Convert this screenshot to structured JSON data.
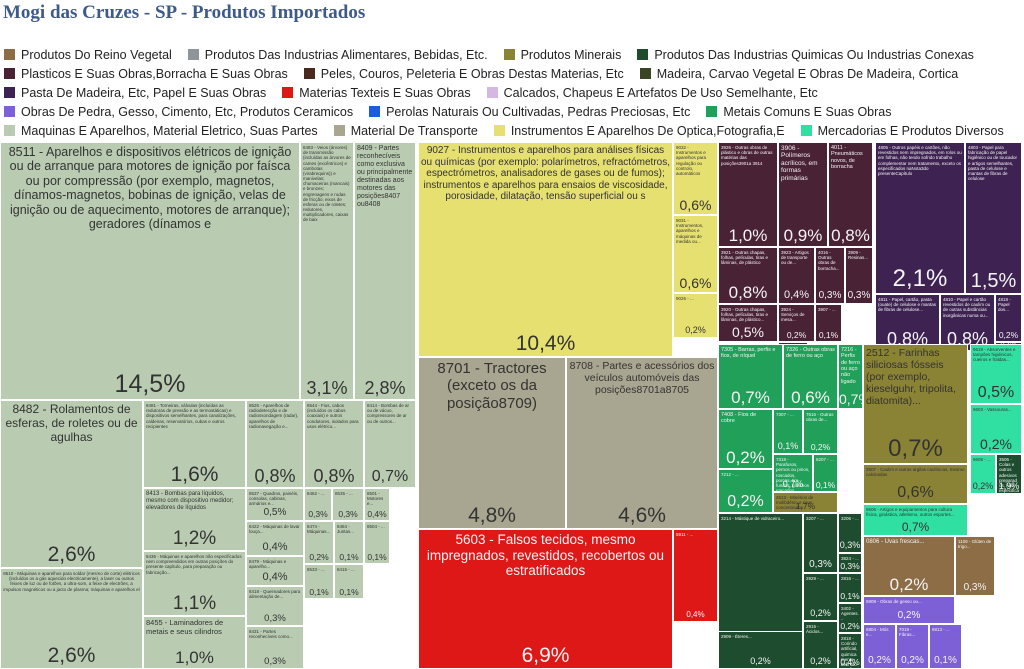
{
  "title": "Mogi das Cruzes - SP - Produtos Importados",
  "chart_data": {
    "type": "treemap",
    "title": "Mogi das Cruzes - SP - Produtos Importados",
    "legend_position": "top",
    "legend": [
      {
        "name": "Produtos Do Reino Vegetal",
        "color": "#8c6d46"
      },
      {
        "name": "Produtos Das Industrias Alimentares, Bebidas, Etc.",
        "color": "#8f9599"
      },
      {
        "name": "Produtos Minerais",
        "color": "#8a8235"
      },
      {
        "name": "Produtos Das Industrias Quimicas Ou Industrias Conexas",
        "color": "#1d4d2e"
      },
      {
        "name": "Plasticos E Suas Obras,Borracha E Suas Obras",
        "color": "#4a2236"
      },
      {
        "name": "Peles, Couros, Peleteria E Obras Destas Materias, Etc",
        "color": "#4a2a20"
      },
      {
        "name": "Madeira, Carvao Vegetal E Obras De Madeira, Cortica",
        "color": "#3a4524"
      },
      {
        "name": "Pasta De Madeira, Etc, Papel E Suas Obras",
        "color": "#3e2352"
      },
      {
        "name": "Materias Texteis E Suas Obras",
        "color": "#de1717"
      },
      {
        "name": "Calcados, Chapeus E Artefatos De Uso Semelhante, Etc",
        "color": "#d5b8e2"
      },
      {
        "name": "Obras De Pedra, Gesso, Cimento, Etc, Produtos Ceramicos",
        "color": "#7d5fd6"
      },
      {
        "name": "Perolas Naturais Ou Cultivadas, Pedras Preciosas, Etc",
        "color": "#1a5ee0"
      },
      {
        "name": "Metais Comuns E Suas Obras",
        "color": "#21a05a"
      },
      {
        "name": "Maquinas E Aparelhos, Material Eletrico, Suas Partes",
        "color": "#b9ccb2"
      },
      {
        "name": "Material De Transporte",
        "color": "#a8a690"
      },
      {
        "name": "Instrumentos E Aparelhos De Optica,Fotografia,E",
        "color": "#e6e070"
      },
      {
        "name": "Mercadorias E Produtos Diversos",
        "color": "#2fe0a2"
      }
    ],
    "tiles": [
      {
        "label": "8511 - Aparelhos e dispositivos elétricos de ignição ou de arranque para motores de ignição por faísca ou por compressão (por exemplo, magnetos, dínamos-magnetos, bobinas de ignição, velas de ignição ou de aquecimento, motores de arranque); geradores (dínamos e",
        "value": "14,5%",
        "group": 13
      },
      {
        "label": "8483 - Veios (árvores) de transmissão (incluídas as árvores de cames (excêntricos) e cambotas (virabrequins)) e manivelas; chumaceiras (mancais) e bronzes; engrenagens e rodas de fricção; eixos de esferas ou de roletes; redutores, multiplicadores, caixas de baix",
        "value": "3,1%",
        "group": 13
      },
      {
        "label": "8409 - Partes reconhecíveis como exclusiva ou principalmente destinadas aos motores das posições8407 ou8408",
        "value": "2,8%",
        "group": 13
      },
      {
        "label": "8482 - Rolamentos de esferas, de roletes ou de agulhas",
        "value": "2,6%",
        "group": 13
      },
      {
        "label": "8481 - Torneiras, válvulas (incluídas as redutoras de pressão e as termostáticas) e dispositivos semelhantes, para canalizações, caldeiras, reservatórios, cubas e outros recipientes",
        "value": "1,6%",
        "group": 13
      },
      {
        "label": "8526 - Aparelhos de radiodetecção e de radiossondagem (radar), aparelhos de radionavegação e...",
        "value": "0,8%",
        "group": 13
      },
      {
        "label": "8544 - Fios, cabos (incluídos os cabos coaxiais) e outros condutores, isolados para usos elétrico...",
        "value": "0,8%",
        "group": 13
      },
      {
        "label": "8414 - Bombas de ar ou de vácuo, compressores de ar ou de outros...",
        "value": "0,7%",
        "group": 13
      },
      {
        "label": "8413 - Bombas para líquidos, mesmo com dispositivo medidor; elevadores de líquidos",
        "value": "1,2%",
        "group": 13
      },
      {
        "label": "8537 - Quadros, painéis, consolas, cabinas, armários e...",
        "value": "0,5%",
        "group": 13
      },
      {
        "label": "8462 - ...",
        "value": "0,3%",
        "group": 13
      },
      {
        "label": "8535 - ...",
        "value": "0,3%",
        "group": 13
      },
      {
        "label": "8501 - Motores e...",
        "value": "0,4%",
        "group": 13
      },
      {
        "label": "8510 - Máquinas e aparelhos para soldar (mesmo de corte) elétricos (incluídos os a gás aquecido electricamente), a laser ou outros feixes de luz ou de fotões, a ultra-som, a feixe de electrões, a impulsos magnéticos ou a jacto de plasma; máquinas e aparelhos el",
        "value": "2,6%",
        "group": 13
      },
      {
        "label": "8436 - Máquinas e aparelhos não especificados nem compreendidos em outras posições do presente capítulo, para preparação ou fabricação...",
        "value": "1,1%",
        "group": 13
      },
      {
        "label": "8422 - Máquinas de lavar louça...",
        "value": "0,4%",
        "group": 13
      },
      {
        "label": "8479 - Máquinas e aparelho...",
        "value": "0,4%",
        "group": 13
      },
      {
        "label": "8419 - Aparelhos e dispositivos, mesmo aquecidos electricamente (exceto fornos e outros aparelhos da posição8514), para tratamento de matérias por meio de operações que impliquem mudança de temperatura, tais como aquecimento, cozimento, torrefacção, destilaç",
        "value": "1,9%",
        "group": 13
      },
      {
        "label": "8455 - Laminadores de metais e seus cilindros",
        "value": "1,0%",
        "group": 13
      },
      {
        "label": "8418 - Queimadores para alimentação de...",
        "value": "0,3%",
        "group": 13
      },
      {
        "label": "8431 - Partes reconhecíveis como...",
        "value": "0,3%",
        "group": 13
      },
      {
        "label": "8474 - Máquinas...",
        "value": "0,2%",
        "group": 13
      },
      {
        "label": "8484 - Juntas...",
        "value": "0,1%",
        "group": 13
      },
      {
        "label": "8533 - ...",
        "value": "0,1%",
        "group": 13
      },
      {
        "label": "8415 - ...",
        "value": "0,1%",
        "group": 13
      },
      {
        "label": "8504 - ...",
        "value": "0,1%",
        "group": 13
      },
      {
        "label": "9027 - Instrumentos e aparelhos para análises físicas ou químicas (por exemplo: polarímetros, refractómetros, espectrómetros, analisadores de gases ou de fumos); instrumentos e aparelhos para ensaios de viscosidade, porosidade, dilatação, tensão superficial ou s",
        "value": "10,4%",
        "group": 15
      },
      {
        "label": "9032 - Instrumentos e aparelhos para regulação ou controlo, automáticos",
        "value": "0,6%",
        "group": 15
      },
      {
        "label": "9031 - Instrumentos, aparelhos e máquinas de medida ou...",
        "value": "0,6%",
        "group": 15
      },
      {
        "label": "9026 - ...",
        "value": "0,2%",
        "group": 15
      },
      {
        "label": "8701 - Tractores (exceto os da posição8709)",
        "value": "4,8%",
        "group": 14
      },
      {
        "label": "8708 - Partes e acessórios dos veículos automóveis das posições8701a8705",
        "value": "4,6%",
        "group": 14
      },
      {
        "label": "5603 - Falsos tecidos, mesmo impregnados, revestidos, recobertos ou estratificados",
        "value": "6,9%",
        "group": 8
      },
      {
        "label": "5911 - ...",
        "value": "0,4%",
        "group": 8
      },
      {
        "label": "3926 - Outras obras de plástico e obras de outras matérias das posições3901a 3914",
        "value": "1,0%",
        "group": 4
      },
      {
        "label": "3906 - Polímeros acrílicos, em formas primárias",
        "value": "0,9%",
        "group": 4
      },
      {
        "label": "4011 - Pneumáticos novos, de borracha",
        "value": "0,8%",
        "group": 4
      },
      {
        "label": "3921 - Outras chapas, folhas, películas, tiras e lâminas, de plástico",
        "value": "0,8%",
        "group": 4
      },
      {
        "label": "3923 - Artigos de transporte ou de...",
        "value": "0,4%",
        "group": 4
      },
      {
        "label": "4016 - Outras obras de borracha...",
        "value": "0,3%",
        "group": 4
      },
      {
        "label": "3909 - Resinas...",
        "value": "0,3%",
        "group": 4
      },
      {
        "label": "3920 - Outras chapas, folhas, películas, tiras e lâminas, de plástico...",
        "value": "0,5%",
        "group": 4
      },
      {
        "label": "3924 - Serviços de mesa...",
        "value": "0,2%",
        "group": 4
      },
      {
        "label": "3917 - Tubos...",
        "value": "0,2%",
        "group": 4
      },
      {
        "label": "3907 - ...",
        "value": "0,1%",
        "group": 4
      },
      {
        "label": "4805 - Outros papéis e cartões, não revestidos nem impregnados, em rolos ou em folhas, não tendo sofrido trabalho complementar nem tratamento, exceto os especificados naNota3do presenteCapítulo",
        "value": "2,1%",
        "group": 7
      },
      {
        "label": "4803 - Papel para fabricação de papel higiênico ou de toucador e artigos semelhantes, pasta de celulose e mantas de fibras de celulose",
        "value": "1,5%",
        "group": 7
      },
      {
        "label": "4811 - Papel, cartão, pasta (ouate) de celulose e mantas de fibras de celulose...",
        "value": "0,8%",
        "group": 7
      },
      {
        "label": "4810 - Papel e cartão revestidos de caulim ou de outras substâncias inorgânicas numa ou...",
        "value": "0,8%",
        "group": 7
      },
      {
        "label": "4818 - Papel dos...",
        "value": "0,2%",
        "group": 7
      },
      {
        "label": "4823 - ...",
        "value": "0,1%",
        "group": 7
      },
      {
        "label": "7217 - Fios de ferro ou aço não ligado",
        "value": "0,8%",
        "group": 12
      },
      {
        "label": "7305 - Barras, perfis e fios, de níquel",
        "value": "0,7%",
        "group": 12
      },
      {
        "label": "7326 - Outras obras de ferro ou aço",
        "value": "0,6%",
        "group": 12
      },
      {
        "label": "7216 - Perfis de ferro ou aço não ligado",
        "value": "0,7%",
        "group": 12
      },
      {
        "label": "7408 - Fios de cobre",
        "value": "0,2%",
        "group": 12
      },
      {
        "label": "7307 - ...",
        "value": "0,1%",
        "group": 12
      },
      {
        "label": "7616 - Outras obras de...",
        "value": "0,2%",
        "group": 12
      },
      {
        "label": "7318 - Parafusos, pernos ou pinos, roscados, porcas, tira-fundos, ganchos roscados...",
        "value": "0,7%",
        "group": 12
      },
      {
        "label": "7212 - ...",
        "value": "0,2%",
        "group": 12
      },
      {
        "label": "8207 - ...",
        "value": "0,1%",
        "group": 12
      },
      {
        "label": "2613 - Minérios de molibdênio e seus concentrados",
        "value": "1,7%",
        "group": 2
      },
      {
        "label": "2512 - Farinhas siliciosas fósseis (por exemplo, kieselguhr, tripolita, diatomita)...",
        "value": "0,7%",
        "group": 2
      },
      {
        "label": "2507 - Caulim e outras argilas caulínicas, mesmo calcinadas",
        "value": "0,6%",
        "group": 2
      },
      {
        "label": "9506 - Artigos e equipamentos para cultura física, ginástica, atletismo, outros esportes...",
        "value": "0,7%",
        "group": 16
      },
      {
        "label": "9619 - Absorventes e tampões higiénicos, cueiros e fraldas...",
        "value": "0,5%",
        "group": 16
      },
      {
        "label": "9603 - Vassouras...",
        "value": "0,2%",
        "group": 16
      },
      {
        "label": "9608 - ...",
        "value": "0,2%",
        "group": 16
      },
      {
        "label": "3506 - Colas e outros adesivos preparados, não especificados nem compreendidos em outras posições; produtos de qualquer espécie utilizados como colas ou adesivos, acondicionados para venda a retalho como colas ou adesivos, com peso líquido não superior a1kg",
        "value": "1,9%",
        "group": 3
      },
      {
        "label": "3214 - Mástique de vidraceiro...",
        "value": "0,4%",
        "group": 3
      },
      {
        "label": "3207 - ...",
        "value": "0,3%",
        "group": 3
      },
      {
        "label": "3206 - ...",
        "value": "0,3%",
        "group": 3
      },
      {
        "label": "3824 - ...",
        "value": "0,3%",
        "group": 3
      },
      {
        "label": "2929 - ...",
        "value": "0,2%",
        "group": 3
      },
      {
        "label": "2816 - ...",
        "value": "0,1%",
        "group": 3
      },
      {
        "label": "3402 - Agentes...",
        "value": "0,2%",
        "group": 3
      },
      {
        "label": "2915 - Ácidos...",
        "value": "0,2%",
        "group": 3
      },
      {
        "label": "2818 - Corindo artificial, quimicamente definido ou não...",
        "value": "0,4%",
        "group": 3
      },
      {
        "label": "2909 - Éteres...",
        "value": "0,2%",
        "group": 3
      },
      {
        "label": "2836 - ...",
        "value": "0,1%",
        "group": 3
      },
      {
        "label": "0808 - Maçãs, pêras e marmelos, frescos",
        "value": "0,7%",
        "group": 0
      },
      {
        "label": "0806 - Uvas frescas...",
        "value": "0,2%",
        "group": 0
      },
      {
        "label": "1109 - Glúten de trigo...",
        "value": "0,3%",
        "group": 0
      },
      {
        "label": "6909 - Obras de gesso ou...",
        "value": "0,2%",
        "group": 10
      },
      {
        "label": "6804 - Mós e...",
        "value": "0,2%",
        "group": 10
      },
      {
        "label": "7019 - Fibras...",
        "value": "0,2%",
        "group": 10
      },
      {
        "label": "6813 - ...",
        "value": "0,1%",
        "group": 10
      }
    ]
  }
}
